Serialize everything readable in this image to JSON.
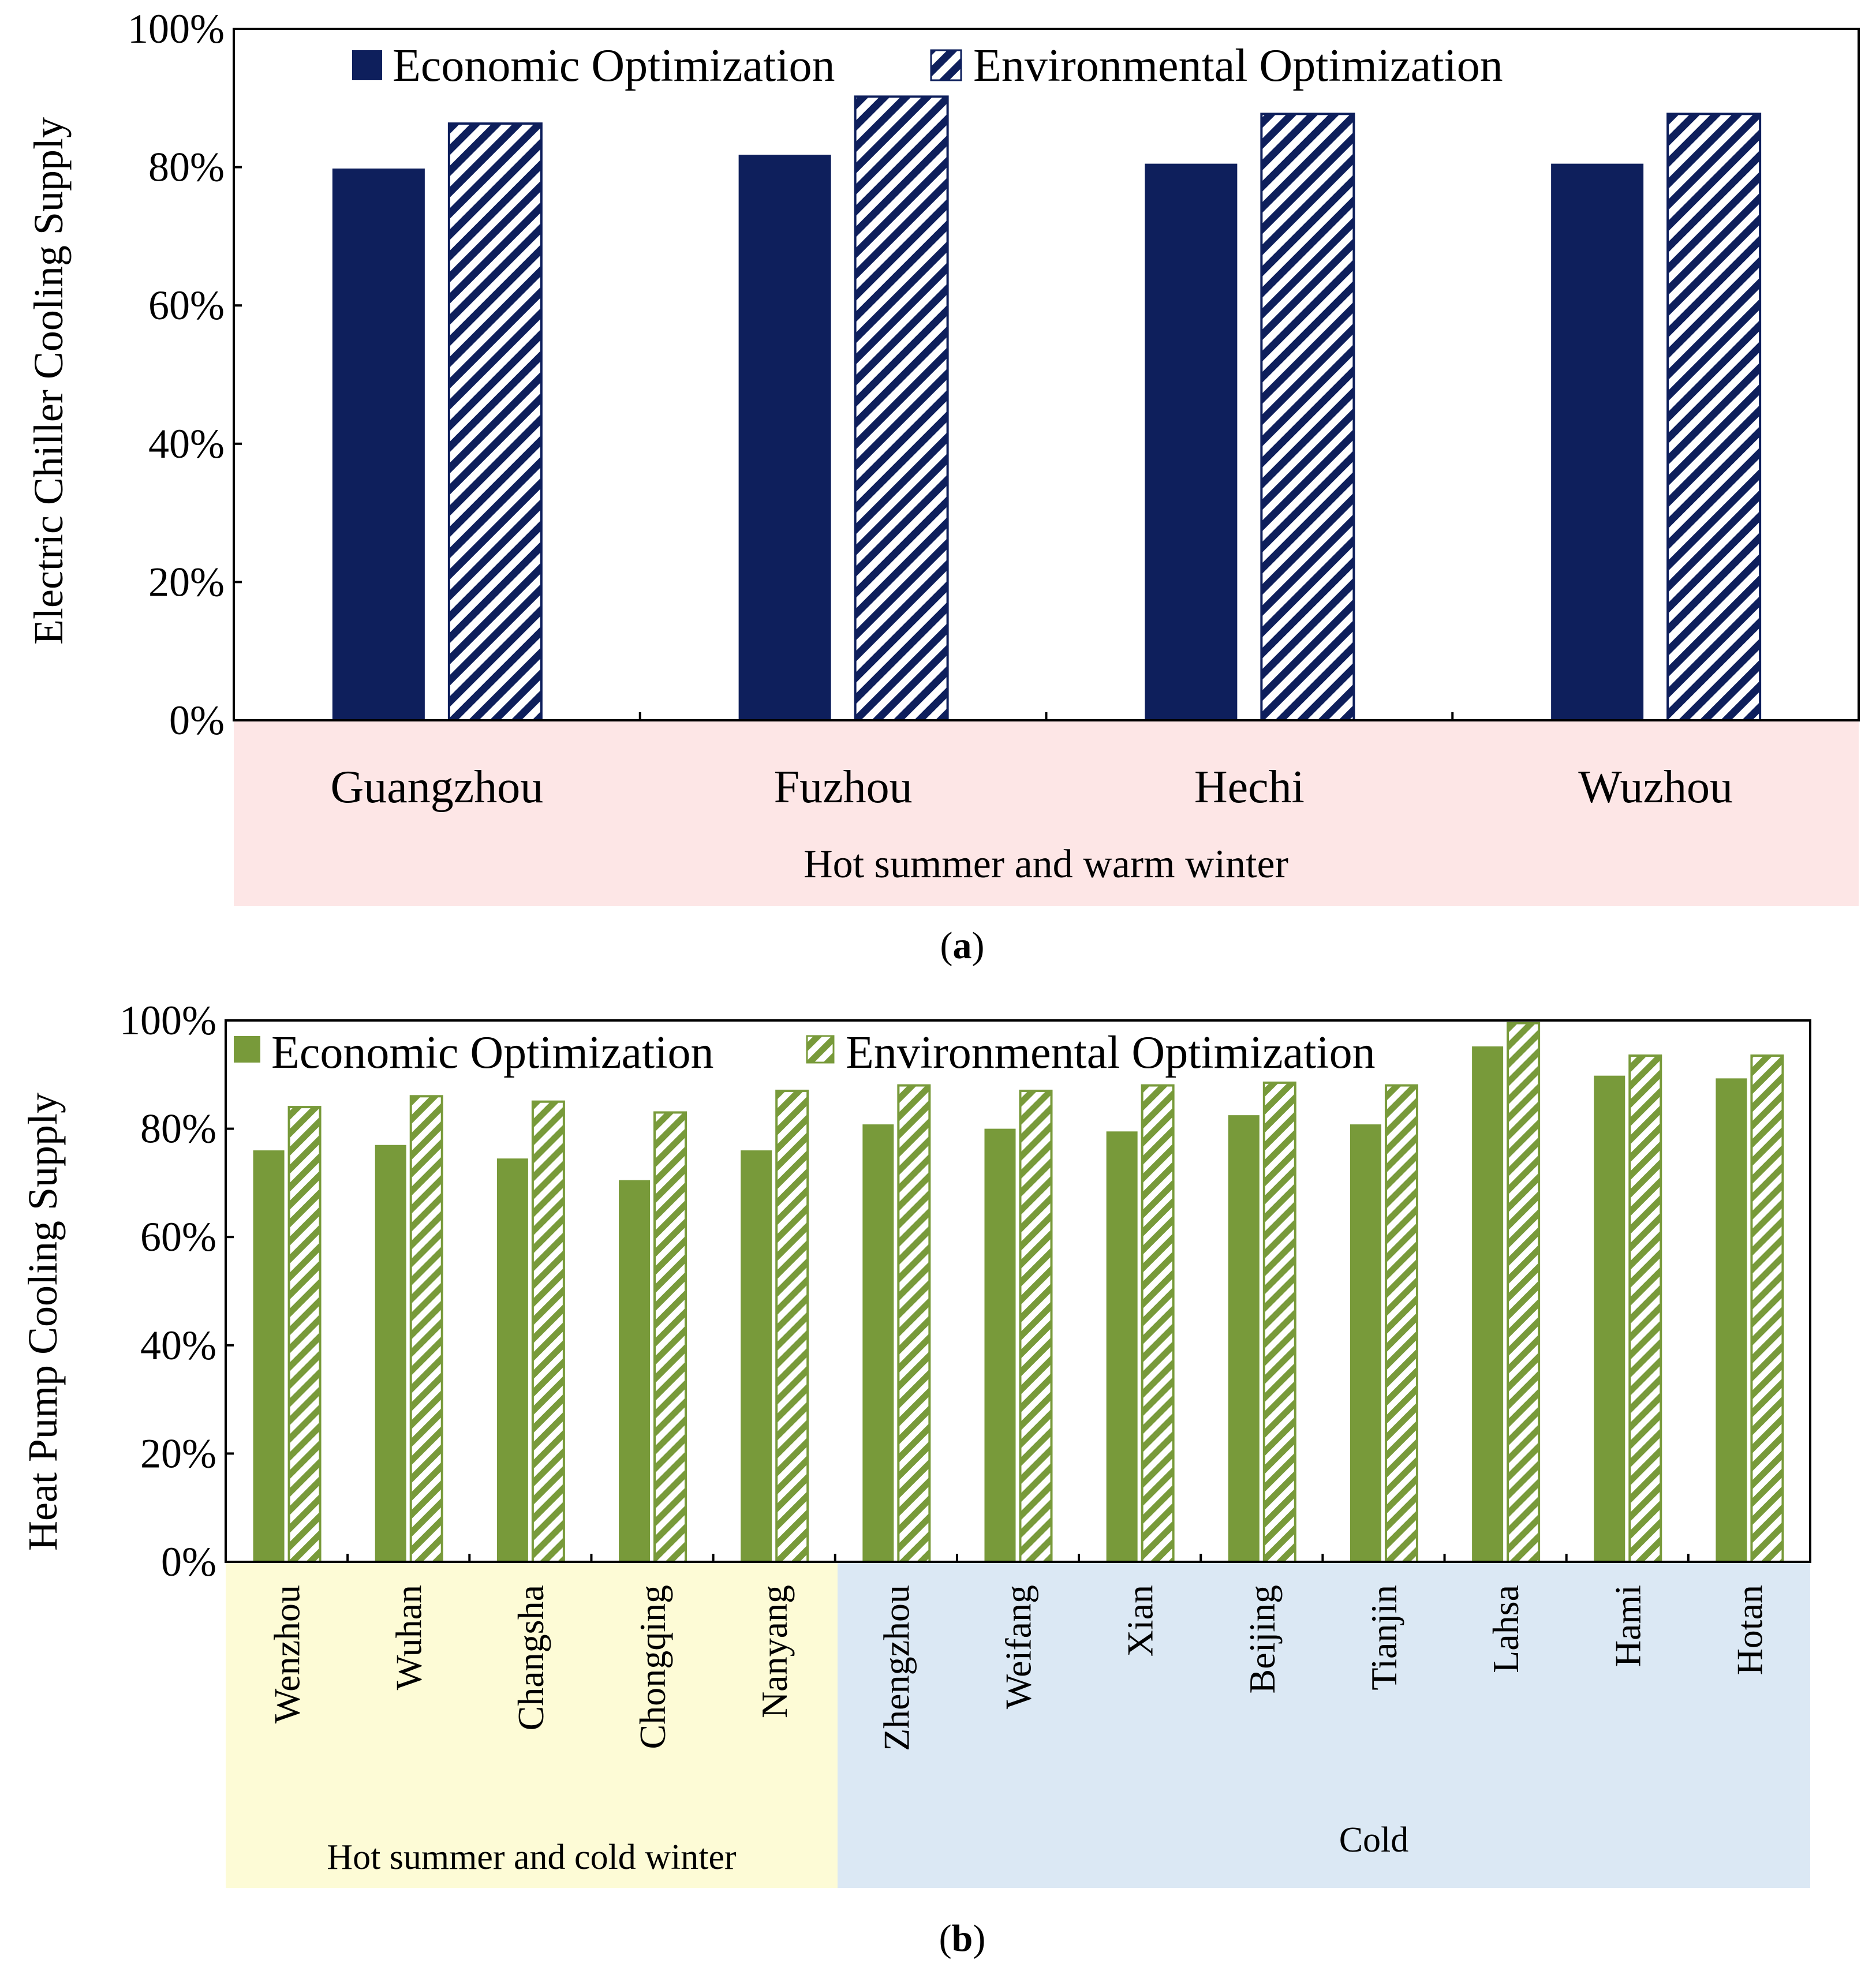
{
  "chart_data": [
    {
      "type": "bar",
      "panel_label": "a",
      "ylabel": "Electric Chiller Cooling Supply",
      "ylim": [
        0,
        100
      ],
      "yticks": [
        "0%",
        "20%",
        "40%",
        "60%",
        "80%",
        "100%"
      ],
      "categories": [
        "Guangzhou",
        "Fuzhou",
        "Hechi",
        "Wuzhou"
      ],
      "series": [
        {
          "name": "Economic Optimization",
          "values": [
            79.8,
            81.8,
            80.5,
            80.5
          ]
        },
        {
          "name": "Environmental Optimization",
          "values": [
            86.3,
            90.2,
            87.7,
            87.7
          ]
        }
      ],
      "groups": [
        {
          "label": "Hot summer  and warm winter",
          "start": 0,
          "end": 3
        }
      ],
      "legend": "top-center",
      "colors": {
        "economic": "#0e1f5c",
        "environmental": "#0e1f5c",
        "group_bg": [
          "#fde6e6"
        ]
      }
    },
    {
      "type": "bar",
      "panel_label": "b",
      "ylabel": "Heat Pump Cooling Supply",
      "ylim": [
        0,
        100
      ],
      "yticks": [
        "0%",
        "20%",
        "40%",
        "60%",
        "80%",
        "100%"
      ],
      "categories": [
        "Wenzhou",
        "Wuhan",
        "Changsha",
        "Chongqing",
        "Nanyang",
        "Zhengzhou",
        "Weifang",
        "Xian",
        "Beijing",
        "Tianjin",
        "Lahsa",
        "Hami",
        "Hotan"
      ],
      "series": [
        {
          "name": "Economic Optimization",
          "values": [
            76,
            77,
            74.5,
            70.5,
            76,
            80.8,
            80,
            79.5,
            82.5,
            80.8,
            95.2,
            89.8,
            89.3
          ]
        },
        {
          "name": "Environmental Optimization",
          "values": [
            84,
            86,
            85,
            83,
            87,
            88,
            87,
            88,
            88.5,
            88,
            99.5,
            93.5,
            93.5
          ]
        }
      ],
      "groups": [
        {
          "label": "Hot summer and cold winter",
          "start": 0,
          "end": 4
        },
        {
          "label": "Cold",
          "start": 5,
          "end": 12
        }
      ],
      "legend": "top-left",
      "colors": {
        "economic": "#789a3a",
        "environmental": "#789a3a",
        "group_bg": [
          "#fdfbd6",
          "#dbe8f4"
        ]
      }
    }
  ]
}
